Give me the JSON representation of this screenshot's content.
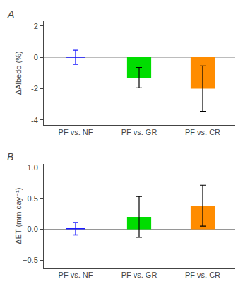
{
  "chart_data": [
    {
      "type": "bar",
      "title": "A",
      "categories": [
        "PF vs. NF",
        "PF vs. GR",
        "PF vs. CR"
      ],
      "series": [
        {
          "type": "errorbar",
          "color": "#1a1aff",
          "values": [
            0.0,
            null,
            null
          ],
          "errors": [
            0.45,
            null,
            null
          ]
        },
        {
          "type": "bar",
          "colors": [
            null,
            "#00dd00",
            "#ff8c00"
          ],
          "values": [
            null,
            -1.3,
            -2.0
          ],
          "errors": [
            null,
            0.65,
            1.45
          ]
        }
      ],
      "ylabel": "ΔAlbedo (%)",
      "ylim": [
        -4.3,
        2.3
      ],
      "yticks": [
        -4,
        -2,
        0,
        2
      ],
      "hline": 0.0,
      "grid": false
    },
    {
      "type": "bar",
      "title": "B",
      "categories": [
        "PF vs. NF",
        "PF vs. GR",
        "PF vs. CR"
      ],
      "series": [
        {
          "type": "errorbar",
          "color": "#1a1aff",
          "values": [
            0.01,
            null,
            null
          ],
          "errors": [
            0.1,
            null,
            null
          ]
        },
        {
          "type": "bar",
          "colors": [
            null,
            "#00dd00",
            "#ff8c00"
          ],
          "values": [
            null,
            0.2,
            0.38
          ],
          "errors": [
            null,
            0.33,
            0.33
          ]
        }
      ],
      "ylabel": "ΔET (mm day⁻¹)",
      "ylim": [
        -0.62,
        1.05
      ],
      "yticks": [
        {
          "value": -0.5,
          "label": "−0.5"
        },
        {
          "value": 0.0,
          "label": "0.0"
        },
        {
          "value": 0.5,
          "label": "0.5"
        },
        {
          "value": 1.0,
          "label": "1.0"
        }
      ],
      "hline": 0.0,
      "grid": false
    }
  ]
}
